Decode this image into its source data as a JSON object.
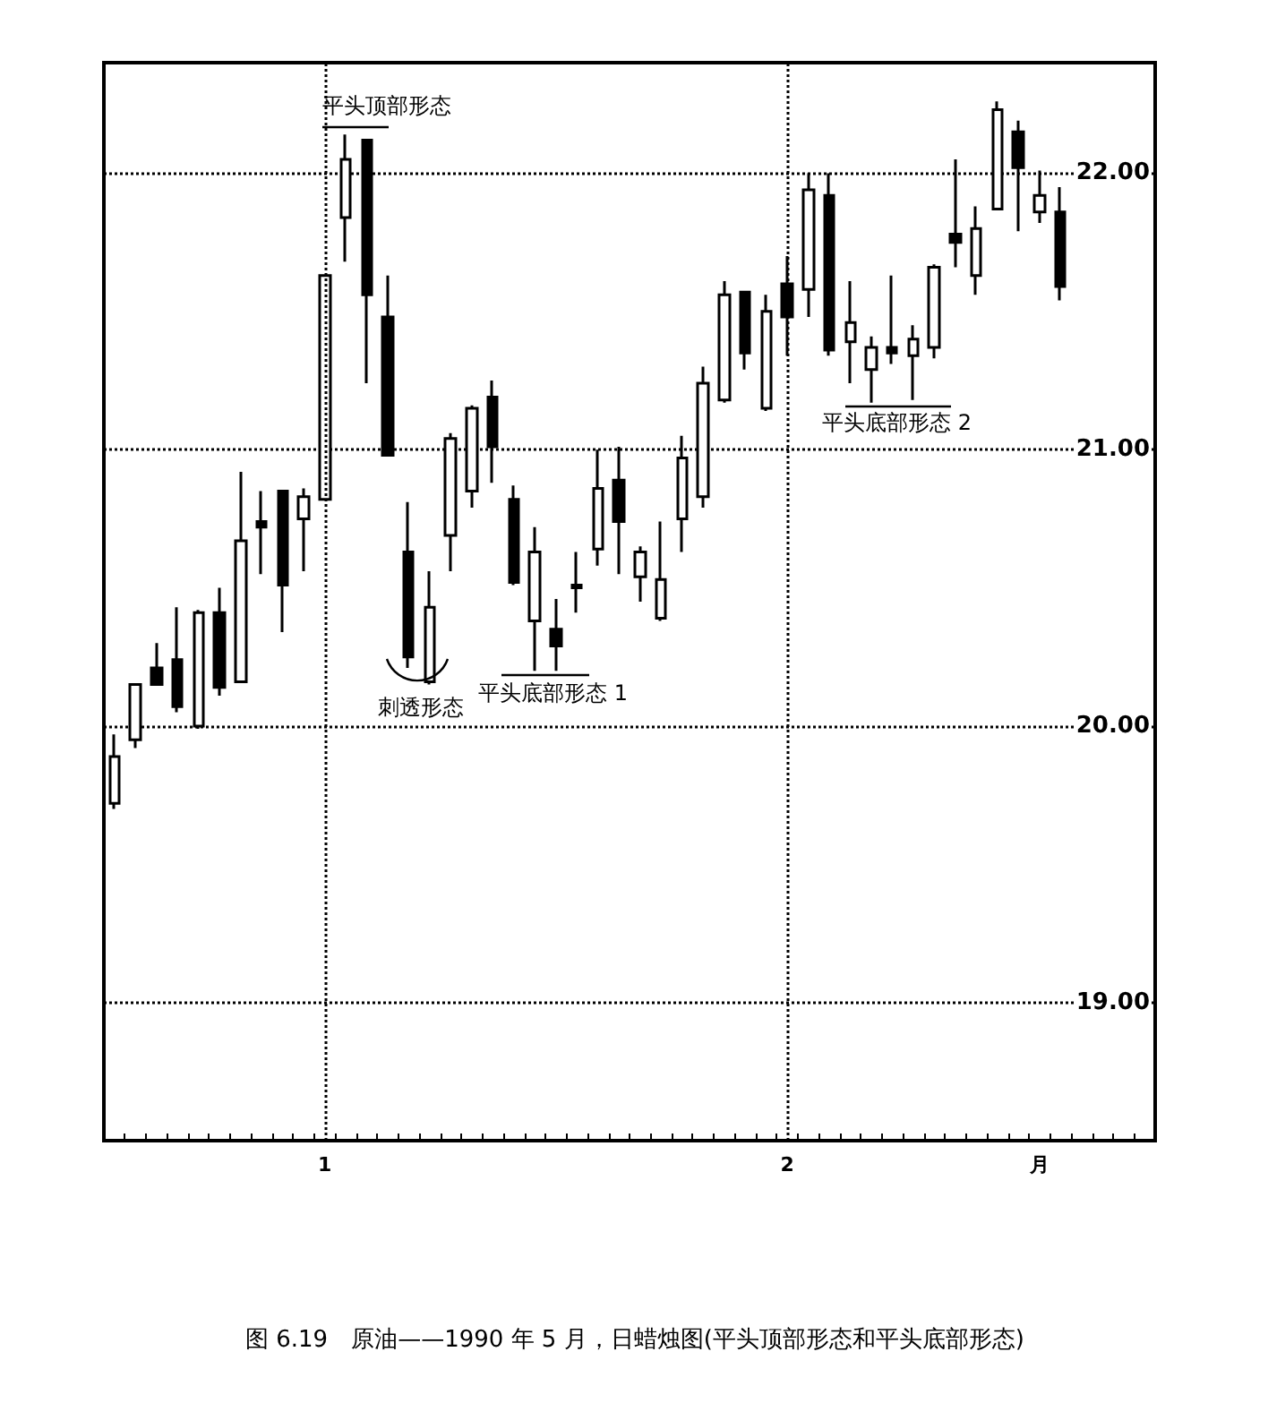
{
  "chart_data": {
    "type": "candlestick",
    "title": "图 6.19　原油——1990 年 5 月，日蜡烛图(平头顶部形态和平头底部形态)",
    "categories": [
      null,
      null,
      null,
      null,
      null,
      null,
      null,
      null,
      null,
      null,
      "1",
      null,
      null,
      null,
      null,
      null,
      null,
      null,
      null,
      null,
      null,
      null,
      null,
      null,
      null,
      null,
      null,
      null,
      null,
      null,
      null,
      null,
      "2",
      null,
      null,
      null,
      null,
      null,
      null,
      null,
      null,
      null,
      null,
      null,
      "月",
      null
    ],
    "ohlc": [
      [
        19.72,
        19.97,
        19.7,
        19.89
      ],
      [
        19.95,
        20.15,
        19.92,
        20.15
      ],
      [
        20.21,
        20.3,
        20.15,
        20.15
      ],
      [
        20.24,
        20.43,
        20.05,
        20.07
      ],
      [
        20.0,
        20.42,
        19.99,
        20.41
      ],
      [
        20.41,
        20.5,
        20.11,
        20.14
      ],
      [
        20.16,
        20.92,
        20.16,
        20.67
      ],
      [
        20.74,
        20.85,
        20.55,
        20.72
      ],
      [
        20.85,
        20.85,
        20.34,
        20.51
      ],
      [
        20.75,
        20.86,
        20.56,
        20.83
      ],
      [
        20.82,
        21.63,
        20.82,
        21.63
      ],
      [
        21.84,
        22.14,
        21.68,
        22.05
      ],
      [
        22.12,
        22.12,
        21.24,
        21.56
      ],
      [
        21.48,
        21.63,
        20.98,
        20.98
      ],
      [
        20.63,
        20.81,
        20.21,
        20.25
      ],
      [
        20.16,
        20.56,
        20.15,
        20.43
      ],
      [
        20.69,
        21.06,
        20.56,
        21.04
      ],
      [
        20.85,
        21.16,
        20.79,
        21.15
      ],
      [
        21.19,
        21.25,
        20.88,
        21.01
      ],
      [
        20.82,
        20.87,
        20.51,
        20.52
      ],
      [
        20.38,
        20.72,
        20.2,
        20.63
      ],
      [
        20.35,
        20.46,
        20.2,
        20.29
      ],
      [
        20.5,
        20.63,
        20.41,
        20.51
      ],
      [
        20.64,
        21.0,
        20.58,
        20.86
      ],
      [
        20.89,
        21.01,
        20.55,
        20.74
      ],
      [
        20.54,
        20.65,
        20.45,
        20.63
      ],
      [
        20.39,
        20.74,
        20.38,
        20.53
      ],
      [
        20.75,
        21.05,
        20.63,
        20.97
      ],
      [
        20.83,
        21.3,
        20.79,
        21.24
      ],
      [
        21.18,
        21.61,
        21.17,
        21.56
      ],
      [
        21.57,
        21.57,
        21.29,
        21.35
      ],
      [
        21.15,
        21.56,
        21.14,
        21.5
      ],
      [
        21.6,
        21.7,
        21.34,
        21.48
      ],
      [
        21.58,
        22.0,
        21.48,
        21.94
      ],
      [
        21.92,
        22.0,
        21.34,
        21.36
      ],
      [
        21.39,
        21.61,
        21.24,
        21.46
      ],
      [
        21.29,
        21.41,
        21.17,
        21.37
      ],
      [
        21.37,
        21.63,
        21.31,
        21.35
      ],
      [
        21.34,
        21.45,
        21.18,
        21.4
      ],
      [
        21.37,
        21.67,
        21.33,
        21.66
      ],
      [
        21.78,
        22.05,
        21.66,
        21.75
      ],
      [
        21.63,
        21.88,
        21.56,
        21.8
      ],
      [
        21.87,
        22.26,
        21.87,
        22.23
      ],
      [
        22.15,
        22.19,
        21.79,
        22.02
      ],
      [
        21.86,
        22.01,
        21.82,
        21.92
      ],
      [
        21.86,
        21.95,
        21.54,
        21.59
      ]
    ],
    "ylim": [
      18.5,
      22.4
    ],
    "yticks": [
      {
        "value": 19,
        "label": "19.00"
      },
      {
        "value": 20,
        "label": "20.00"
      },
      {
        "value": 21,
        "label": "21.00"
      },
      {
        "value": 22,
        "label": "22.00"
      }
    ],
    "grid": "y",
    "ref_lines": [
      {
        "axis": "x",
        "value": "1",
        "line_style": "dotted"
      },
      {
        "axis": "x",
        "value": "2",
        "line_style": "dotted"
      }
    ],
    "annotations": [
      "平头顶部形态",
      "刺透形态",
      "平头底部形态 1",
      "平头底部形态 2"
    ]
  }
}
